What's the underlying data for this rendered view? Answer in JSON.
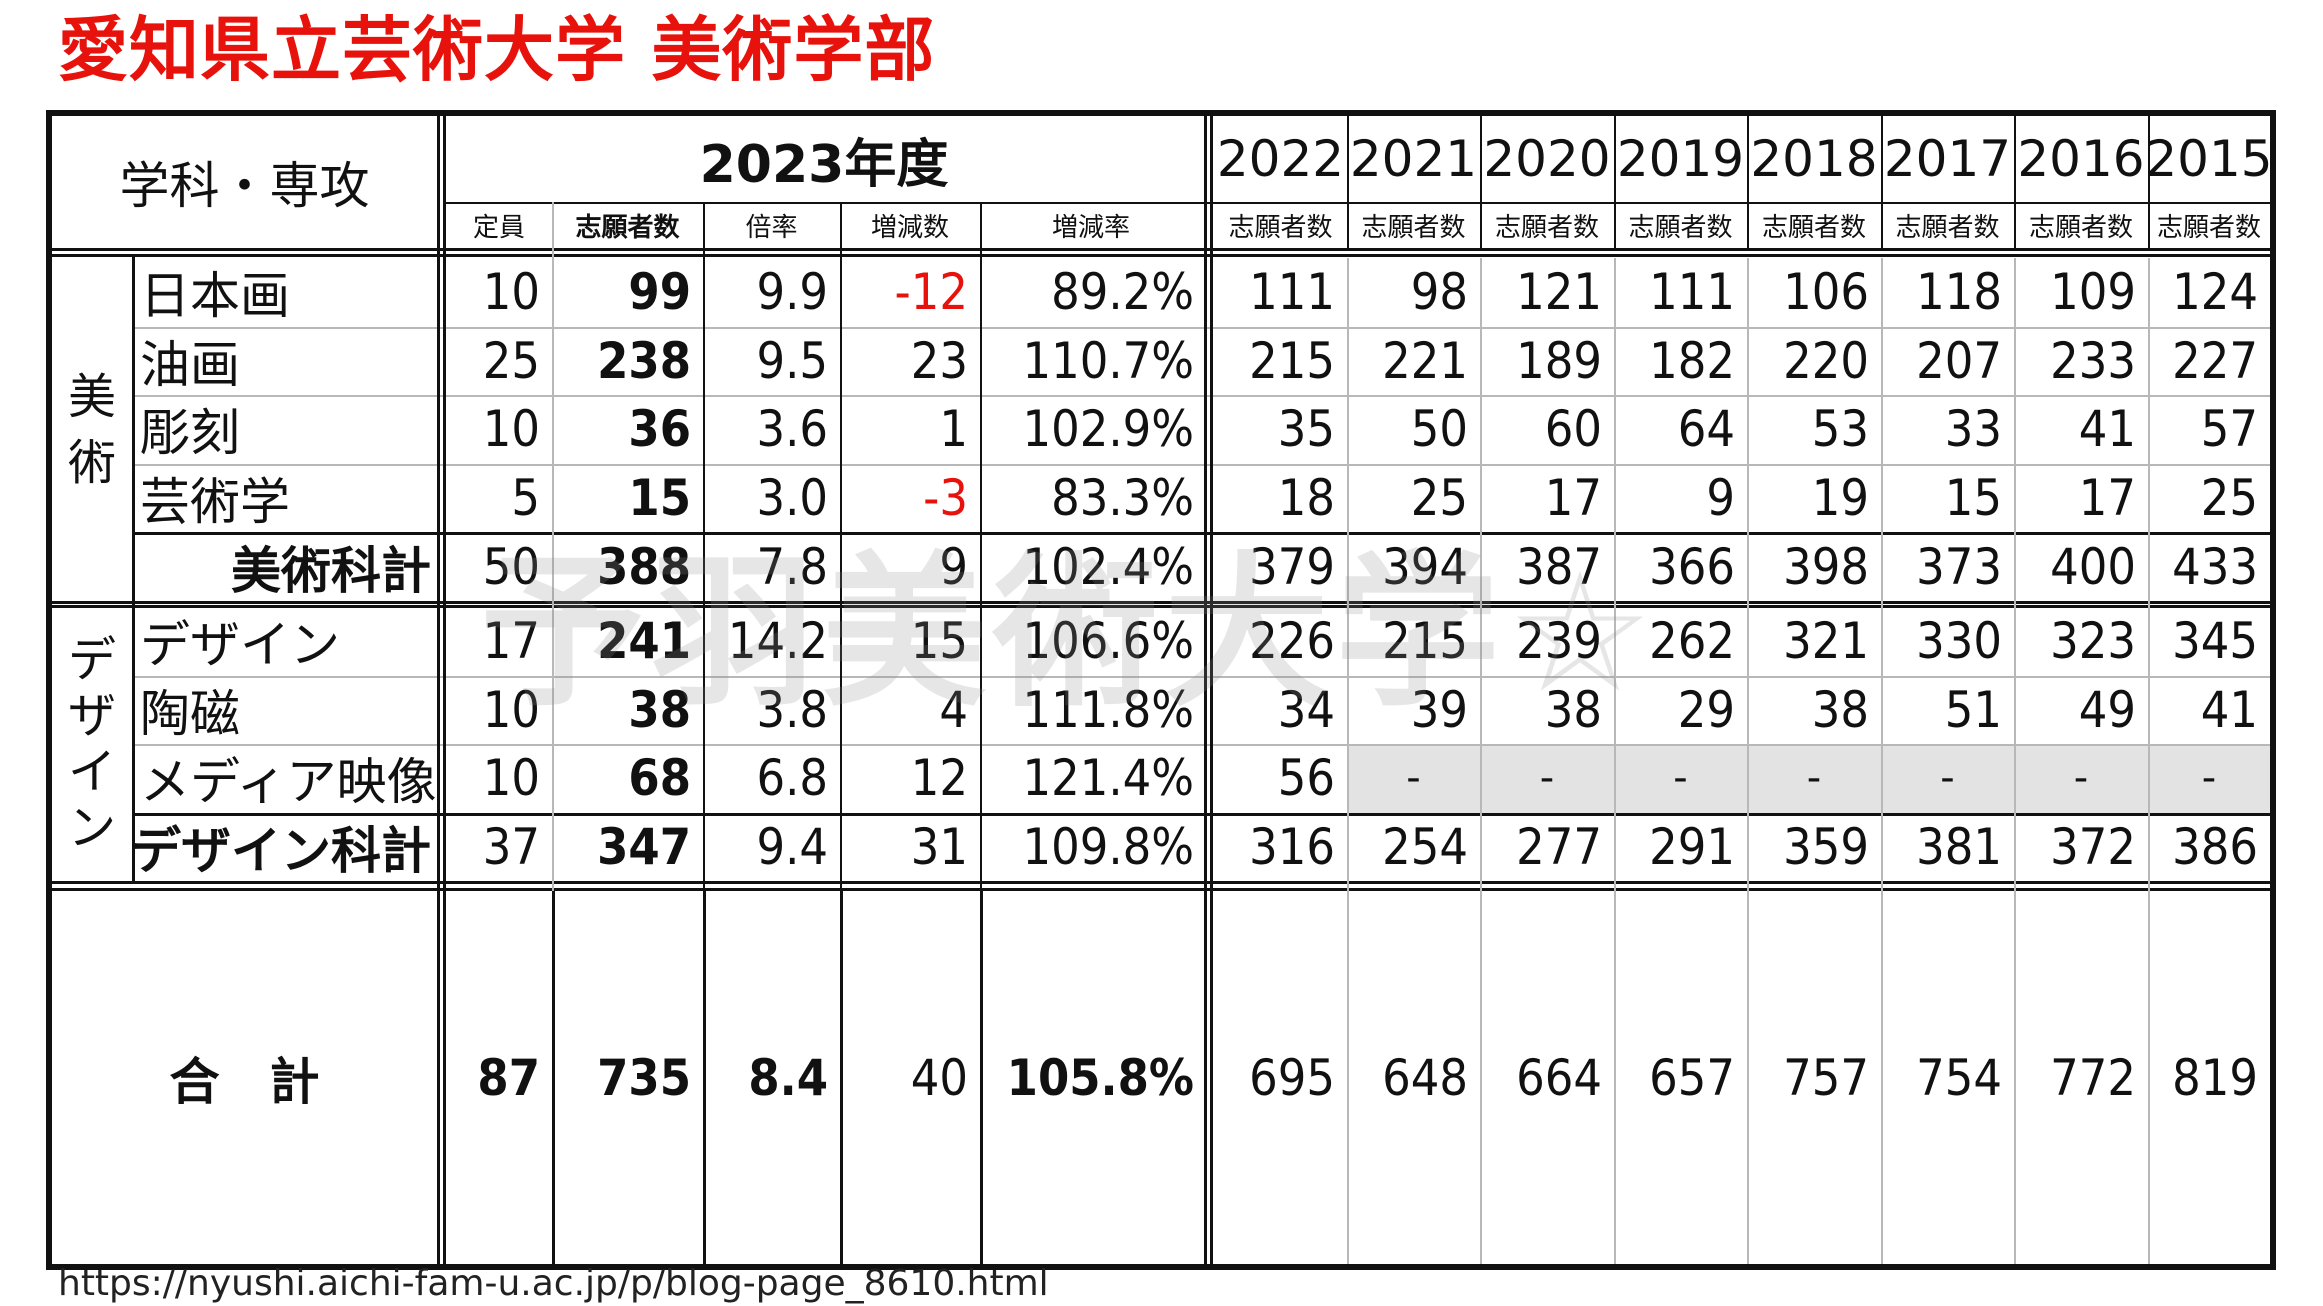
{
  "title": "愛知県立芸術大学 美術学部",
  "watermark": "予羽美術大学☆",
  "url": "https://nyushi.aichi-fam-u.ac.jp/p/blog-page_8610.html",
  "header": {
    "dept_label": "学科・専攻",
    "current_year": "2023年度",
    "sub_labels": [
      "定員",
      "志願者数",
      "倍率",
      "増減数",
      "増減率"
    ],
    "years": [
      "2022",
      "2021",
      "2020",
      "2019",
      "2018",
      "2017",
      "2016",
      "2015"
    ],
    "year_sub_label": "志願者数"
  },
  "groups": {
    "art": "美術",
    "design": "デザイン"
  },
  "rows": [
    {
      "name": "日本画",
      "capacity": "10",
      "applicants": "99",
      "ratio": "9.9",
      "change": "-12",
      "change_rate": "89.2%",
      "history": [
        "111",
        "98",
        "121",
        "111",
        "106",
        "118",
        "109",
        "124"
      ]
    },
    {
      "name": "油画",
      "capacity": "25",
      "applicants": "238",
      "ratio": "9.5",
      "change": "23",
      "change_rate": "110.7%",
      "history": [
        "215",
        "221",
        "189",
        "182",
        "220",
        "207",
        "233",
        "227"
      ]
    },
    {
      "name": "彫刻",
      "capacity": "10",
      "applicants": "36",
      "ratio": "3.6",
      "change": "1",
      "change_rate": "102.9%",
      "history": [
        "35",
        "50",
        "60",
        "64",
        "53",
        "33",
        "41",
        "57"
      ]
    },
    {
      "name": "芸術学",
      "capacity": "5",
      "applicants": "15",
      "ratio": "3.0",
      "change": "-3",
      "change_rate": "83.3%",
      "history": [
        "18",
        "25",
        "17",
        "9",
        "19",
        "15",
        "17",
        "25"
      ]
    },
    {
      "name": "美術科計",
      "capacity": "50",
      "applicants": "388",
      "ratio": "7.8",
      "change": "9",
      "change_rate": "102.4%",
      "history": [
        "379",
        "394",
        "387",
        "366",
        "398",
        "373",
        "400",
        "433"
      ]
    },
    {
      "name": "デザイン",
      "capacity": "17",
      "applicants": "241",
      "ratio": "14.2",
      "change": "15",
      "change_rate": "106.6%",
      "history": [
        "226",
        "215",
        "239",
        "262",
        "321",
        "330",
        "323",
        "345"
      ]
    },
    {
      "name": "陶磁",
      "capacity": "10",
      "applicants": "38",
      "ratio": "3.8",
      "change": "4",
      "change_rate": "111.8%",
      "history": [
        "34",
        "39",
        "38",
        "29",
        "38",
        "51",
        "49",
        "41"
      ]
    },
    {
      "name": "メディア映像",
      "capacity": "10",
      "applicants": "68",
      "ratio": "6.8",
      "change": "12",
      "change_rate": "121.4%",
      "history": [
        "56",
        "-",
        "-",
        "-",
        "-",
        "-",
        "-",
        "-"
      ]
    },
    {
      "name": "デザイン科計",
      "capacity": "37",
      "applicants": "347",
      "ratio": "9.4",
      "change": "31",
      "change_rate": "109.8%",
      "history": [
        "316",
        "254",
        "277",
        "291",
        "359",
        "381",
        "372",
        "386"
      ]
    }
  ],
  "total": {
    "name": "合　計",
    "capacity": "87",
    "applicants": "735",
    "ratio": "8.4",
    "change": "40",
    "change_rate": "105.8%",
    "history": [
      "695",
      "648",
      "664",
      "657",
      "757",
      "754",
      "772",
      "819"
    ]
  },
  "colors": {
    "title": "#e8120c",
    "negative": "#e8120c",
    "no_data_fill": "#e3e3e3"
  }
}
